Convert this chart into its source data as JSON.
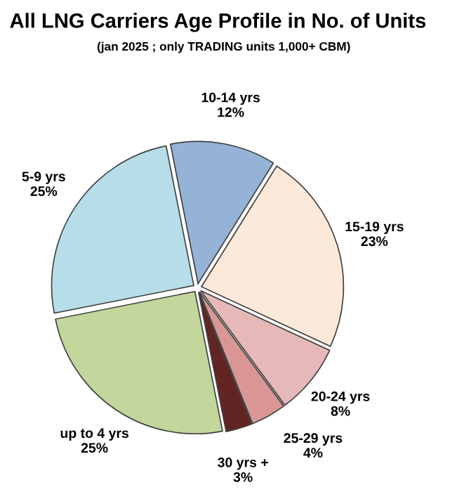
{
  "chart_data": {
    "type": "pie",
    "title": "All LNG Carriers Age Profile in No. of Units",
    "subtitle": "(jan 2025 ; only TRADING units 1,000+ CBM)",
    "categories": [
      "15-19 yrs",
      "20-24 yrs",
      "25-29 yrs",
      "30 yrs +",
      "up to 4 yrs",
      "5-9 yrs",
      "10-14 yrs"
    ],
    "values": [
      23,
      8,
      4,
      3,
      25,
      25,
      12
    ],
    "value_labels": [
      "23%",
      "8%",
      "4%",
      "3%",
      "25%",
      "25%",
      "12%"
    ],
    "colors": [
      "#fde9d9",
      "#e6b9b8",
      "#d99694",
      "#632523",
      "#c3d69b",
      "#b7dee8",
      "#95b3d7"
    ]
  }
}
